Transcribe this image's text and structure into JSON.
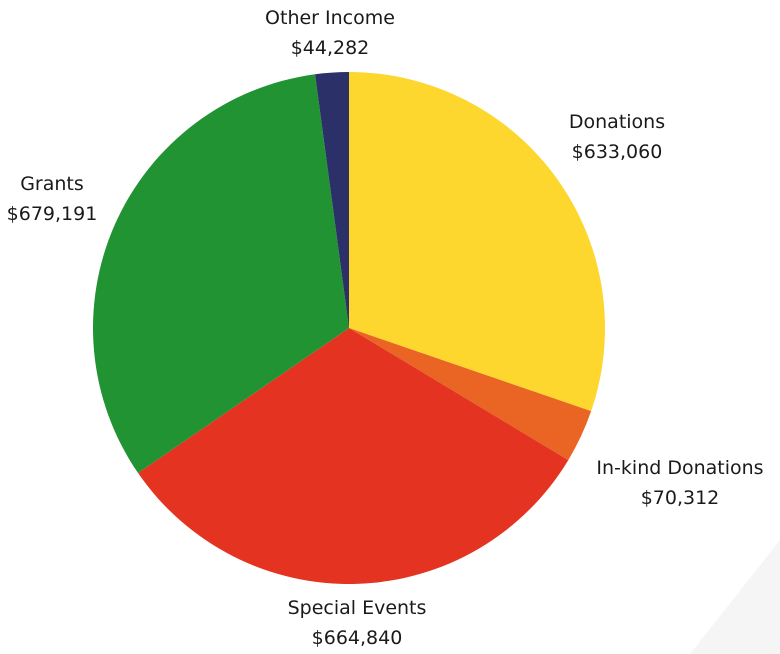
{
  "chart_data": {
    "type": "pie",
    "start_angle_deg": 0,
    "direction": "clockwise",
    "slices": [
      {
        "label": "Donations",
        "value_text": "$633,060",
        "value": 633060,
        "color": "#FDD72E"
      },
      {
        "label": "In-kind Donations",
        "value_text": "$70,312",
        "value": 70312,
        "color": "#EA6423"
      },
      {
        "label": "Special Events",
        "value_text": "$664,840",
        "value": 664840,
        "color": "#E43421"
      },
      {
        "label": "Grants",
        "value_text": "$679,191",
        "value": 679191,
        "color": "#229333"
      },
      {
        "label": "Other Income",
        "value_text": "$44,282",
        "value": 44282,
        "color": "#2C3068"
      }
    ],
    "legend": "none",
    "background_accent_color": "#F5F5F5"
  }
}
